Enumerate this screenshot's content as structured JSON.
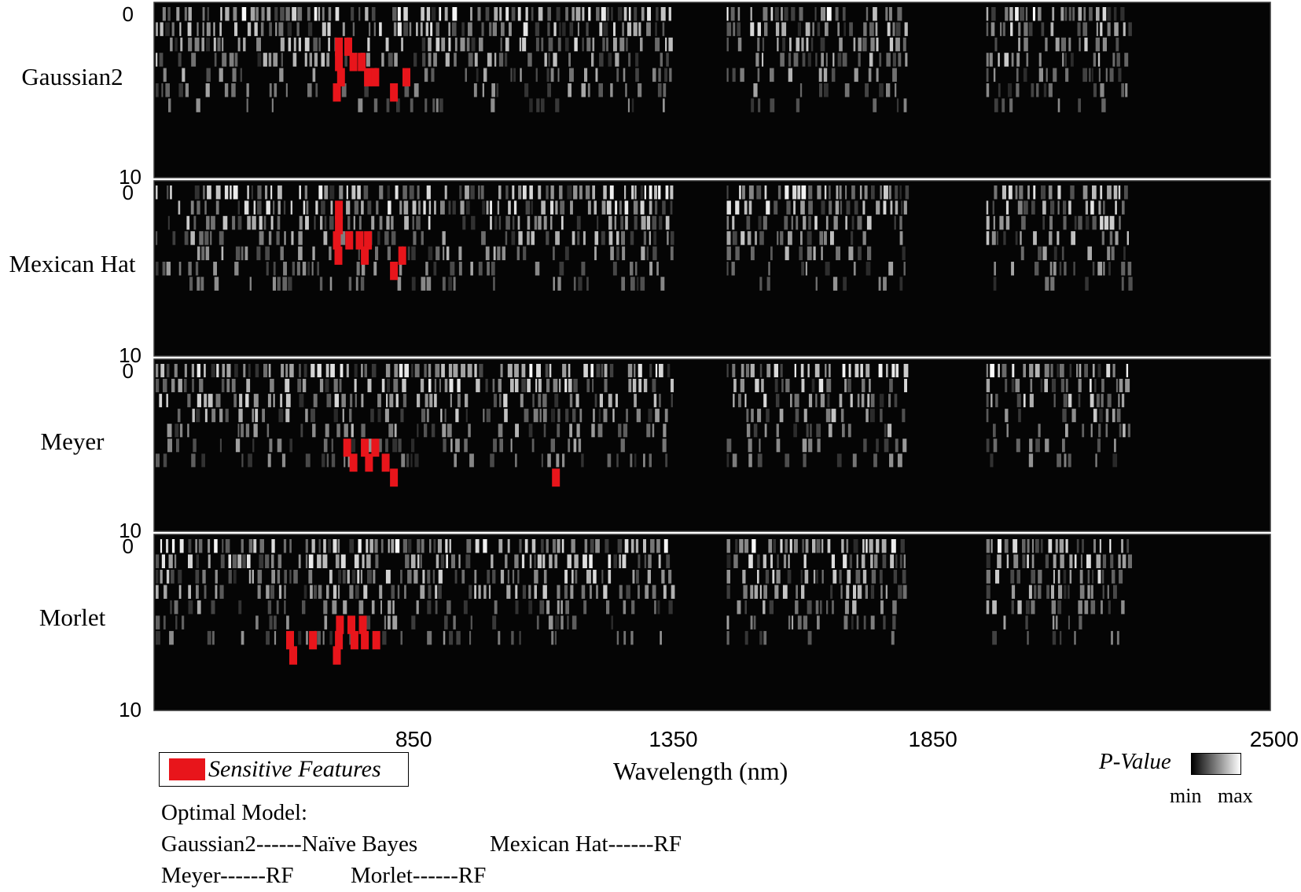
{
  "chart_data": {
    "type": "heatmap",
    "xlabel": "Wavelength (nm)",
    "x_ticks": [
      "850",
      "1350",
      "1850",
      "2500"
    ],
    "x_tick_values": [
      850,
      1350,
      1850,
      2500
    ],
    "xlim": [
      350,
      2500
    ],
    "colorbar": {
      "title": "P-Value",
      "min_label": "min",
      "max_label": "max",
      "colors": [
        "#000000",
        "#ffffff"
      ]
    },
    "highlight_color": "#e8151b",
    "legend": {
      "label": "Sensitive Features",
      "position": "bottom-left"
    },
    "bands_nm": [
      [
        350,
        1350
      ],
      [
        1450,
        1800
      ],
      [
        1950,
        2230
      ]
    ],
    "panels": [
      {
        "name": "Gaussian2",
        "y_ticks": [
          "0",
          "10"
        ],
        "ylim": [
          0,
          10
        ],
        "sensitive_features": [
          {
            "wavelength": 706,
            "scale": 2
          },
          {
            "wavelength": 706,
            "scale": 3
          },
          {
            "wavelength": 710,
            "scale": 4
          },
          {
            "wavelength": 702,
            "scale": 5
          },
          {
            "wavelength": 724,
            "scale": 2
          },
          {
            "wavelength": 734,
            "scale": 3
          },
          {
            "wavelength": 750,
            "scale": 3
          },
          {
            "wavelength": 762,
            "scale": 4
          },
          {
            "wavelength": 776,
            "scale": 4
          },
          {
            "wavelength": 812,
            "scale": 5
          },
          {
            "wavelength": 836,
            "scale": 4
          }
        ]
      },
      {
        "name": "Mexican Hat",
        "y_ticks": [
          "0",
          "10"
        ],
        "ylim": [
          0,
          10
        ],
        "sensitive_features": [
          {
            "wavelength": 706,
            "scale": 1
          },
          {
            "wavelength": 706,
            "scale": 2
          },
          {
            "wavelength": 702,
            "scale": 3
          },
          {
            "wavelength": 705,
            "scale": 4
          },
          {
            "wavelength": 726,
            "scale": 3
          },
          {
            "wavelength": 746,
            "scale": 3
          },
          {
            "wavelength": 762,
            "scale": 3
          },
          {
            "wavelength": 756,
            "scale": 4
          },
          {
            "wavelength": 812,
            "scale": 5
          },
          {
            "wavelength": 828,
            "scale": 4
          }
        ]
      },
      {
        "name": "Meyer",
        "y_ticks": [
          "0",
          "10"
        ],
        "ylim": [
          0,
          10
        ],
        "sensitive_features": [
          {
            "wavelength": 722,
            "scale": 5
          },
          {
            "wavelength": 734,
            "scale": 6
          },
          {
            "wavelength": 756,
            "scale": 5
          },
          {
            "wavelength": 764,
            "scale": 6
          },
          {
            "wavelength": 776,
            "scale": 5
          },
          {
            "wavelength": 796,
            "scale": 6
          },
          {
            "wavelength": 812,
            "scale": 7
          },
          {
            "wavelength": 1124,
            "scale": 7
          }
        ]
      },
      {
        "name": "Morlet",
        "y_ticks": [
          "0",
          "10"
        ],
        "ylim": [
          0,
          10
        ],
        "sensitive_features": [
          {
            "wavelength": 612,
            "scale": 6
          },
          {
            "wavelength": 618,
            "scale": 7
          },
          {
            "wavelength": 656,
            "scale": 6
          },
          {
            "wavelength": 702,
            "scale": 7
          },
          {
            "wavelength": 708,
            "scale": 5
          },
          {
            "wavelength": 706,
            "scale": 6
          },
          {
            "wavelength": 730,
            "scale": 5
          },
          {
            "wavelength": 736,
            "scale": 6
          },
          {
            "wavelength": 752,
            "scale": 5
          },
          {
            "wavelength": 756,
            "scale": 6
          },
          {
            "wavelength": 778,
            "scale": 6
          }
        ]
      }
    ]
  },
  "notes": {
    "heading": "Optimal Model:",
    "gaussian2": "Gaussian2------Naïve Bayes",
    "mexican_hat": "Mexican Hat------RF",
    "meyer": "Meyer------RF",
    "morlet": "Morlet------RF"
  }
}
